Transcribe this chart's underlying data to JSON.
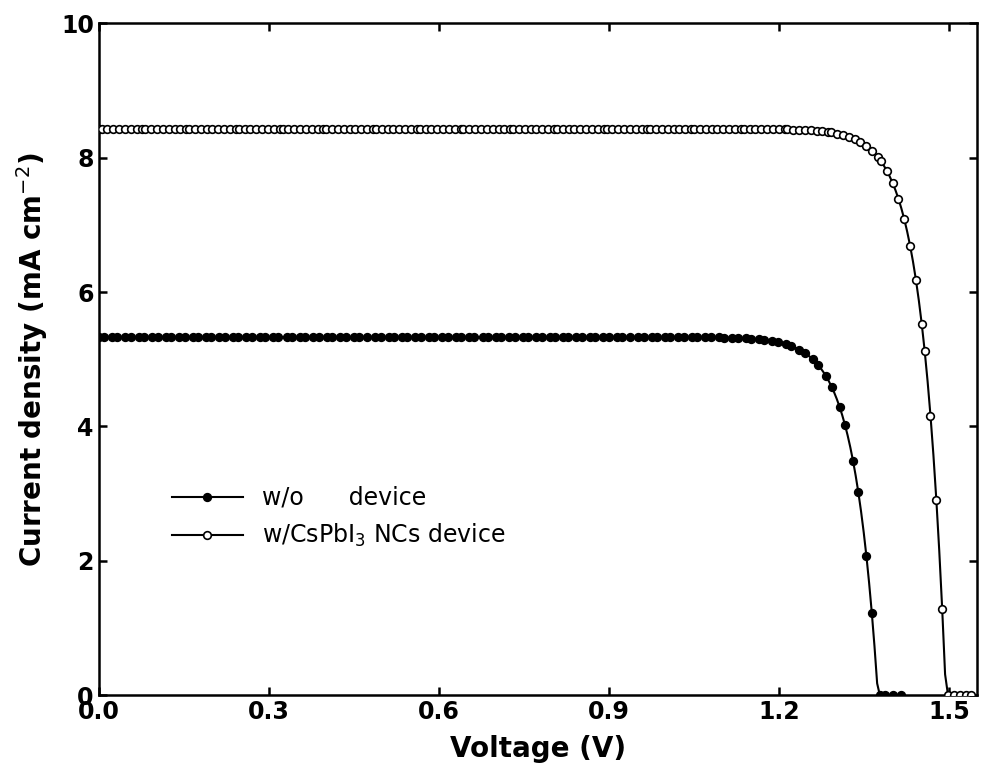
{
  "title": "",
  "xlabel": "Voltage (V)",
  "ylabel": "Current density (mA cm$^{-2}$)",
  "xlim": [
    0.0,
    1.55
  ],
  "ylim": [
    0.0,
    10.0
  ],
  "xticks": [
    0.0,
    0.3,
    0.6,
    0.9,
    1.2,
    1.5
  ],
  "yticks": [
    0,
    2,
    4,
    6,
    8,
    10
  ],
  "background_color": "#ffffff",
  "line_color": "#000000",
  "curve1_label": "w/o      device",
  "curve2_label": "w/CsPbI$_3$ NCs device",
  "curve1_Jsc": 5.33,
  "curve1_Voc": 1.375,
  "curve1_n_id": 1.6,
  "curve2_Jsc": 8.43,
  "curve2_Voc": 1.495,
  "curve2_n_id": 1.55,
  "n_pts_smooth": 300,
  "n_scatter1": 120,
  "n_scatter2": 160,
  "markersize": 5.5,
  "marker_edge_width": 1.2,
  "linewidth": 1.5,
  "figwidth": 9.91,
  "figheight": 7.77,
  "dpi": 100
}
